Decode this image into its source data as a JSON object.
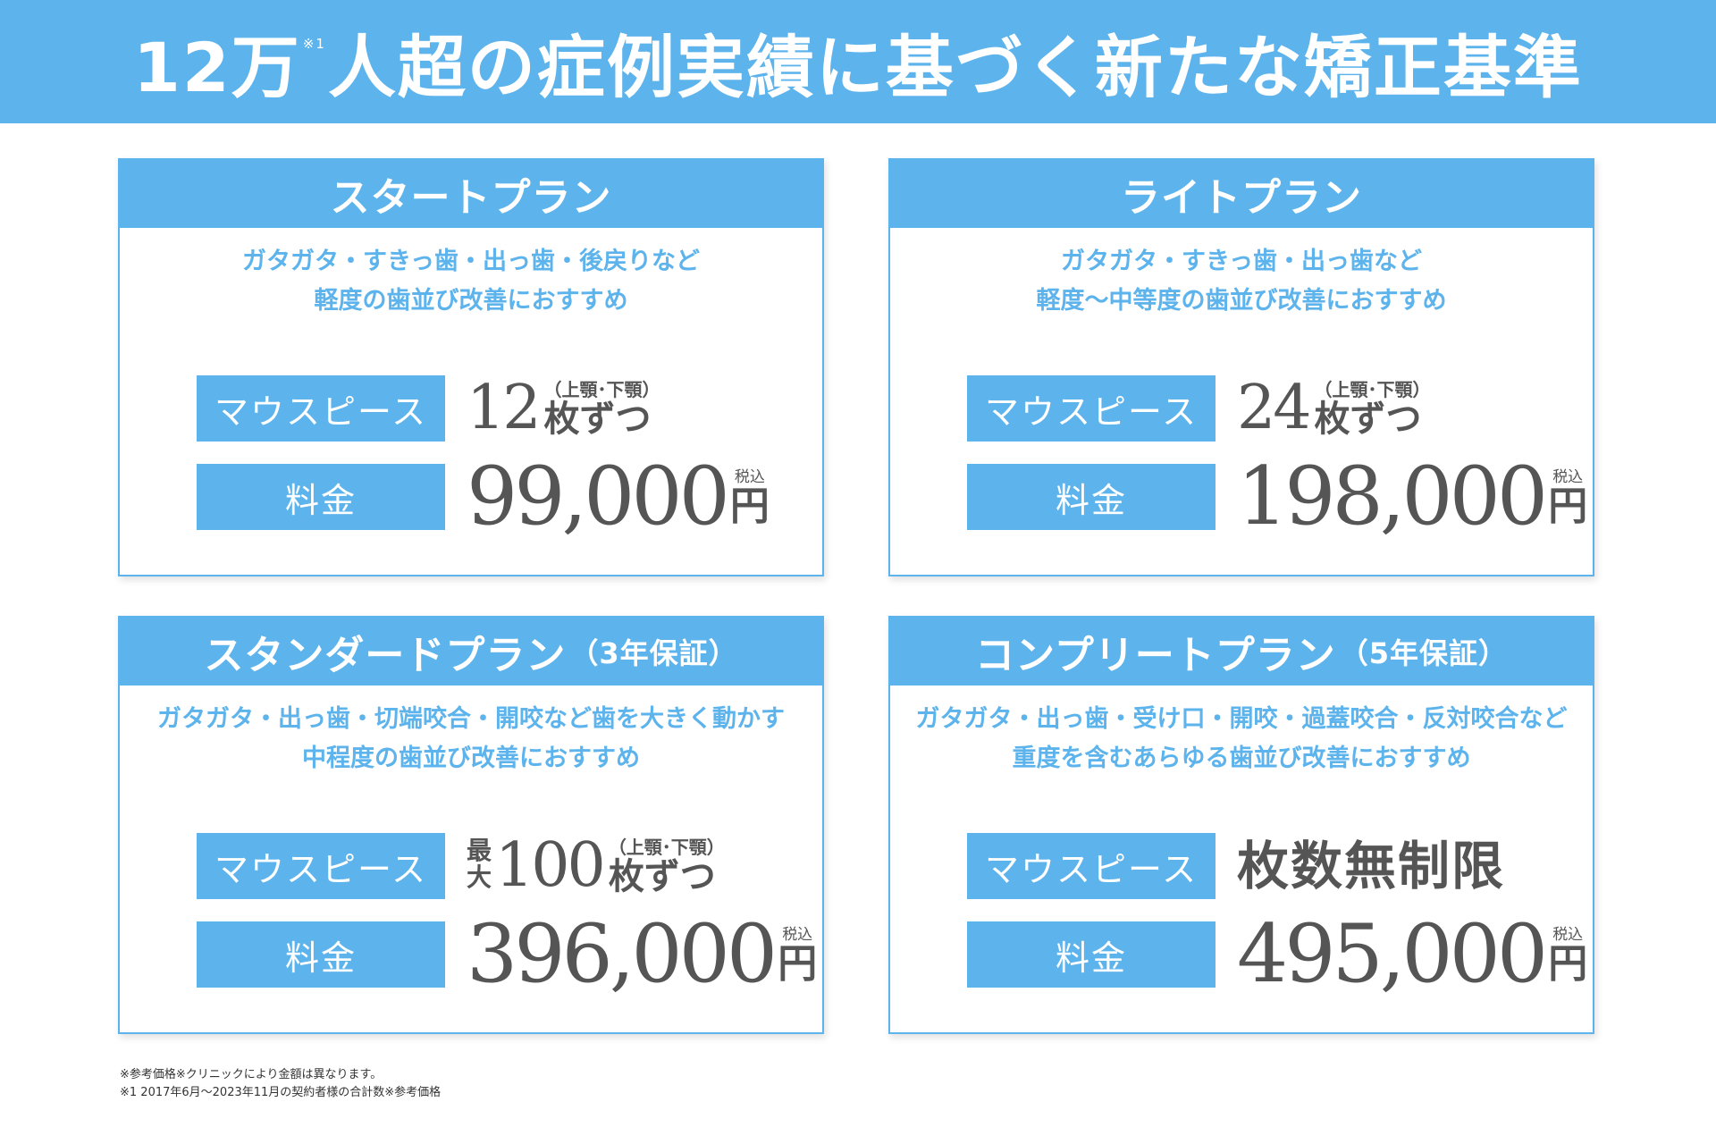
{
  "header": {
    "title_before": "12万",
    "title_note": "※1",
    "title_after": "人超の症例実績に基づく新たな矯正基準"
  },
  "labels": {
    "mouthpiece": "マウスピース",
    "fee": "料金",
    "tax": "税込",
    "yen": "円",
    "jaw": "（上顎･下顎）",
    "each": "枚ずつ",
    "max_top": "最",
    "max_bottom": "大"
  },
  "plans": [
    {
      "name": "スタートプラン",
      "suffix": "",
      "desc1": "ガタガタ・すきっ歯・出っ歯・後戻りなど",
      "desc2": "軽度の歯並び改善におすすめ",
      "count": "12",
      "price": "99,000"
    },
    {
      "name": "ライトプラン",
      "suffix": "",
      "desc1": "ガタガタ・すきっ歯・出っ歯など",
      "desc2": "軽度〜中等度の歯並び改善におすすめ",
      "count": "24",
      "price": "198,000"
    },
    {
      "name": "スタンダードプラン",
      "suffix": "（3年保証）",
      "desc1": "ガタガタ・出っ歯・切端咬合・開咬など歯を大きく動かす",
      "desc2": "中程度の歯並び改善におすすめ",
      "count": "100",
      "price": "396,000"
    },
    {
      "name": "コンプリートプラン",
      "suffix": "（5年保証）",
      "desc1": "ガタガタ・出っ歯・受け口・開咬・過蓋咬合・反対咬合など",
      "desc2": "重度を含むあらゆる歯並び改善におすすめ",
      "count": "枚数無制限",
      "price": "495,000"
    }
  ],
  "notes": {
    "line1": "※参考価格※クリニックにより金額は異なります。",
    "line2": "※1 2017年6月〜2023年11月の契約者様の合計数※参考価格"
  }
}
